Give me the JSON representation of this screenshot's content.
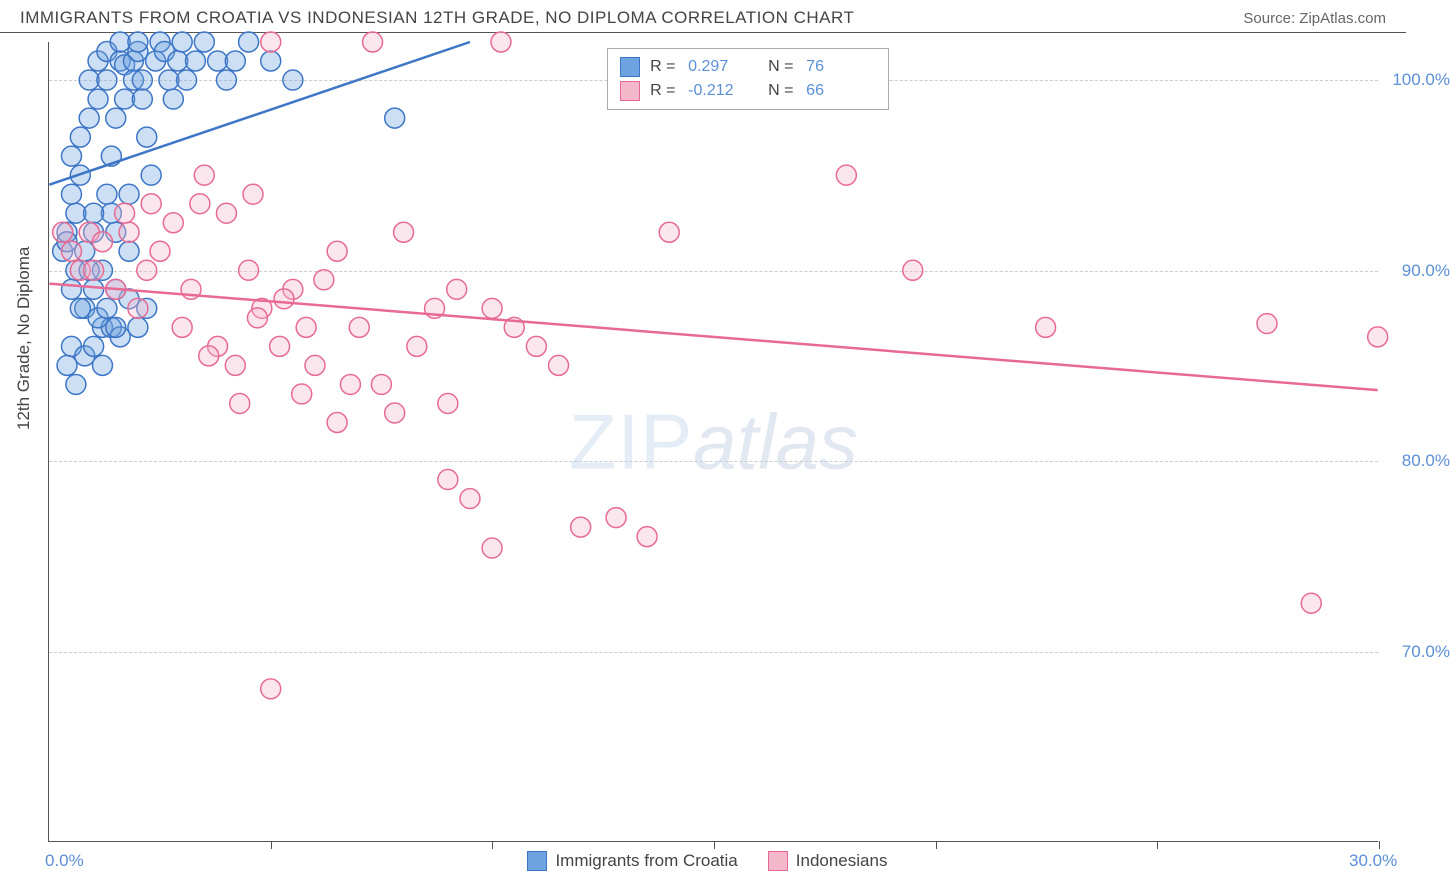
{
  "header": {
    "title": "IMMIGRANTS FROM CROATIA VS INDONESIAN 12TH GRADE, NO DIPLOMA CORRELATION CHART",
    "source_label": "Source:",
    "source_value": "ZipAtlas.com"
  },
  "watermark": {
    "part1": "ZIP",
    "part2": "atlas"
  },
  "axes": {
    "y_label": "12th Grade, No Diploma",
    "x_min": 0,
    "x_max": 30,
    "y_min": 60,
    "y_max": 102,
    "y_ticks": [
      70,
      80,
      90,
      100
    ],
    "y_tick_labels": [
      "70.0%",
      "80.0%",
      "90.0%",
      "100.0%"
    ],
    "x_ticks": [
      0,
      5,
      10,
      15,
      20,
      25,
      30
    ],
    "x_tick_labels": [
      "0.0%",
      "",
      "",
      "",
      "",
      "",
      "30.0%"
    ]
  },
  "colors": {
    "blue_fill": "#6fa2e0",
    "blue_stroke": "#3d76c6",
    "pink_fill": "#f5b8cb",
    "pink_stroke": "#e76a94",
    "grid": "#cccccc",
    "axis": "#555555",
    "tick_text": "#5b8fd6",
    "text": "#444444"
  },
  "legend_top": {
    "rows": [
      {
        "color": "blue",
        "r_label": "R =",
        "r_value": "0.297",
        "n_label": "N =",
        "n_value": "76"
      },
      {
        "color": "pink",
        "r_label": "R =",
        "r_value": "-0.212",
        "n_label": "N =",
        "n_value": "66"
      }
    ]
  },
  "legend_bottom": {
    "items": [
      {
        "color": "blue",
        "label": "Immigrants from Croatia"
      },
      {
        "color": "pink",
        "label": "Indonesians"
      }
    ]
  },
  "chart": {
    "marker_radius": 10,
    "series": [
      {
        "name": "croatia",
        "color": "blue",
        "trend": {
          "x1": 0,
          "y1": 94.5,
          "x2": 9.5,
          "y2": 102
        },
        "points": [
          [
            0.3,
            91
          ],
          [
            0.4,
            92
          ],
          [
            0.5,
            94
          ],
          [
            0.5,
            96
          ],
          [
            0.6,
            90
          ],
          [
            0.6,
            93
          ],
          [
            0.7,
            95
          ],
          [
            0.7,
            97
          ],
          [
            0.8,
            88
          ],
          [
            0.8,
            91
          ],
          [
            0.9,
            98
          ],
          [
            0.9,
            100
          ],
          [
            1.0,
            89
          ],
          [
            1.0,
            92
          ],
          [
            1.1,
            99
          ],
          [
            1.1,
            101
          ],
          [
            1.2,
            87
          ],
          [
            1.2,
            90
          ],
          [
            1.3,
            100
          ],
          [
            1.3,
            101.5
          ],
          [
            1.4,
            93
          ],
          [
            1.4,
            96
          ],
          [
            1.5,
            92
          ],
          [
            1.5,
            98
          ],
          [
            1.6,
            101
          ],
          [
            1.6,
            102
          ],
          [
            1.7,
            100.8
          ],
          [
            1.7,
            99
          ],
          [
            1.8,
            91
          ],
          [
            1.8,
            94
          ],
          [
            1.9,
            100
          ],
          [
            1.9,
            101
          ],
          [
            2.0,
            101.5
          ],
          [
            2.0,
            102
          ],
          [
            2.1,
            100
          ],
          [
            2.1,
            99
          ],
          [
            2.2,
            97
          ],
          [
            2.3,
            95
          ],
          [
            2.4,
            101
          ],
          [
            2.5,
            102
          ],
          [
            2.6,
            101.5
          ],
          [
            2.7,
            100
          ],
          [
            2.8,
            99
          ],
          [
            2.9,
            101
          ],
          [
            3.0,
            102
          ],
          [
            3.1,
            100
          ],
          [
            3.3,
            101
          ],
          [
            3.5,
            102
          ],
          [
            3.8,
            101
          ],
          [
            4.0,
            100
          ],
          [
            4.2,
            101
          ],
          [
            4.5,
            102
          ],
          [
            5.0,
            101
          ],
          [
            5.5,
            100
          ],
          [
            0.4,
            85
          ],
          [
            0.5,
            86
          ],
          [
            0.6,
            84
          ],
          [
            0.8,
            85.5
          ],
          [
            1.0,
            86
          ],
          [
            1.2,
            85
          ],
          [
            1.4,
            87
          ],
          [
            1.6,
            86.5
          ],
          [
            1.1,
            87.5
          ],
          [
            1.3,
            88
          ],
          [
            1.5,
            87
          ],
          [
            1.8,
            88.5
          ],
          [
            0.5,
            89
          ],
          [
            0.7,
            88
          ],
          [
            0.9,
            90
          ],
          [
            1.5,
            89
          ],
          [
            2.0,
            87
          ],
          [
            2.2,
            88
          ],
          [
            1.0,
            93
          ],
          [
            1.3,
            94
          ],
          [
            7.8,
            98
          ],
          [
            0.4,
            91.5
          ]
        ]
      },
      {
        "name": "indonesians",
        "color": "pink",
        "trend": {
          "x1": 0,
          "y1": 89.3,
          "x2": 30,
          "y2": 83.7
        },
        "points": [
          [
            0.3,
            92
          ],
          [
            0.5,
            91
          ],
          [
            0.7,
            90
          ],
          [
            0.9,
            92
          ],
          [
            1.0,
            90
          ],
          [
            1.2,
            91.5
          ],
          [
            1.5,
            89
          ],
          [
            1.8,
            92
          ],
          [
            2.0,
            88
          ],
          [
            2.2,
            90
          ],
          [
            2.5,
            91
          ],
          [
            3.0,
            87
          ],
          [
            3.2,
            89
          ],
          [
            3.5,
            95
          ],
          [
            3.8,
            86
          ],
          [
            4.0,
            93
          ],
          [
            4.2,
            85
          ],
          [
            4.5,
            90
          ],
          [
            4.8,
            88
          ],
          [
            5.0,
            102
          ],
          [
            5.2,
            86
          ],
          [
            5.5,
            89
          ],
          [
            5.8,
            87
          ],
          [
            6.0,
            85
          ],
          [
            6.5,
            91
          ],
          [
            7.0,
            87
          ],
          [
            7.3,
            102
          ],
          [
            7.5,
            84
          ],
          [
            8.0,
            92
          ],
          [
            8.3,
            86
          ],
          [
            8.7,
            88
          ],
          [
            9.0,
            83
          ],
          [
            9.2,
            89
          ],
          [
            9.5,
            78
          ],
          [
            10.0,
            88
          ],
          [
            10.2,
            102
          ],
          [
            10.5,
            87
          ],
          [
            11.0,
            86
          ],
          [
            11.5,
            85
          ],
          [
            12.0,
            76.5
          ],
          [
            12.8,
            77
          ],
          [
            13.5,
            76
          ],
          [
            14.0,
            92
          ],
          [
            5.0,
            68
          ],
          [
            6.5,
            82
          ],
          [
            7.8,
            82.5
          ],
          [
            9.0,
            79
          ],
          [
            4.3,
            83
          ],
          [
            5.7,
            83.5
          ],
          [
            6.8,
            84
          ],
          [
            3.6,
            85.5
          ],
          [
            4.7,
            87.5
          ],
          [
            5.3,
            88.5
          ],
          [
            6.2,
            89.5
          ],
          [
            2.8,
            92.5
          ],
          [
            3.4,
            93.5
          ],
          [
            1.7,
            93
          ],
          [
            2.3,
            93.5
          ],
          [
            4.6,
            94
          ],
          [
            18.0,
            95
          ],
          [
            19.5,
            90
          ],
          [
            22.5,
            87
          ],
          [
            27.5,
            87.2
          ],
          [
            28.5,
            72.5
          ],
          [
            30.0,
            86.5
          ],
          [
            10.0,
            75.4
          ]
        ]
      }
    ]
  }
}
